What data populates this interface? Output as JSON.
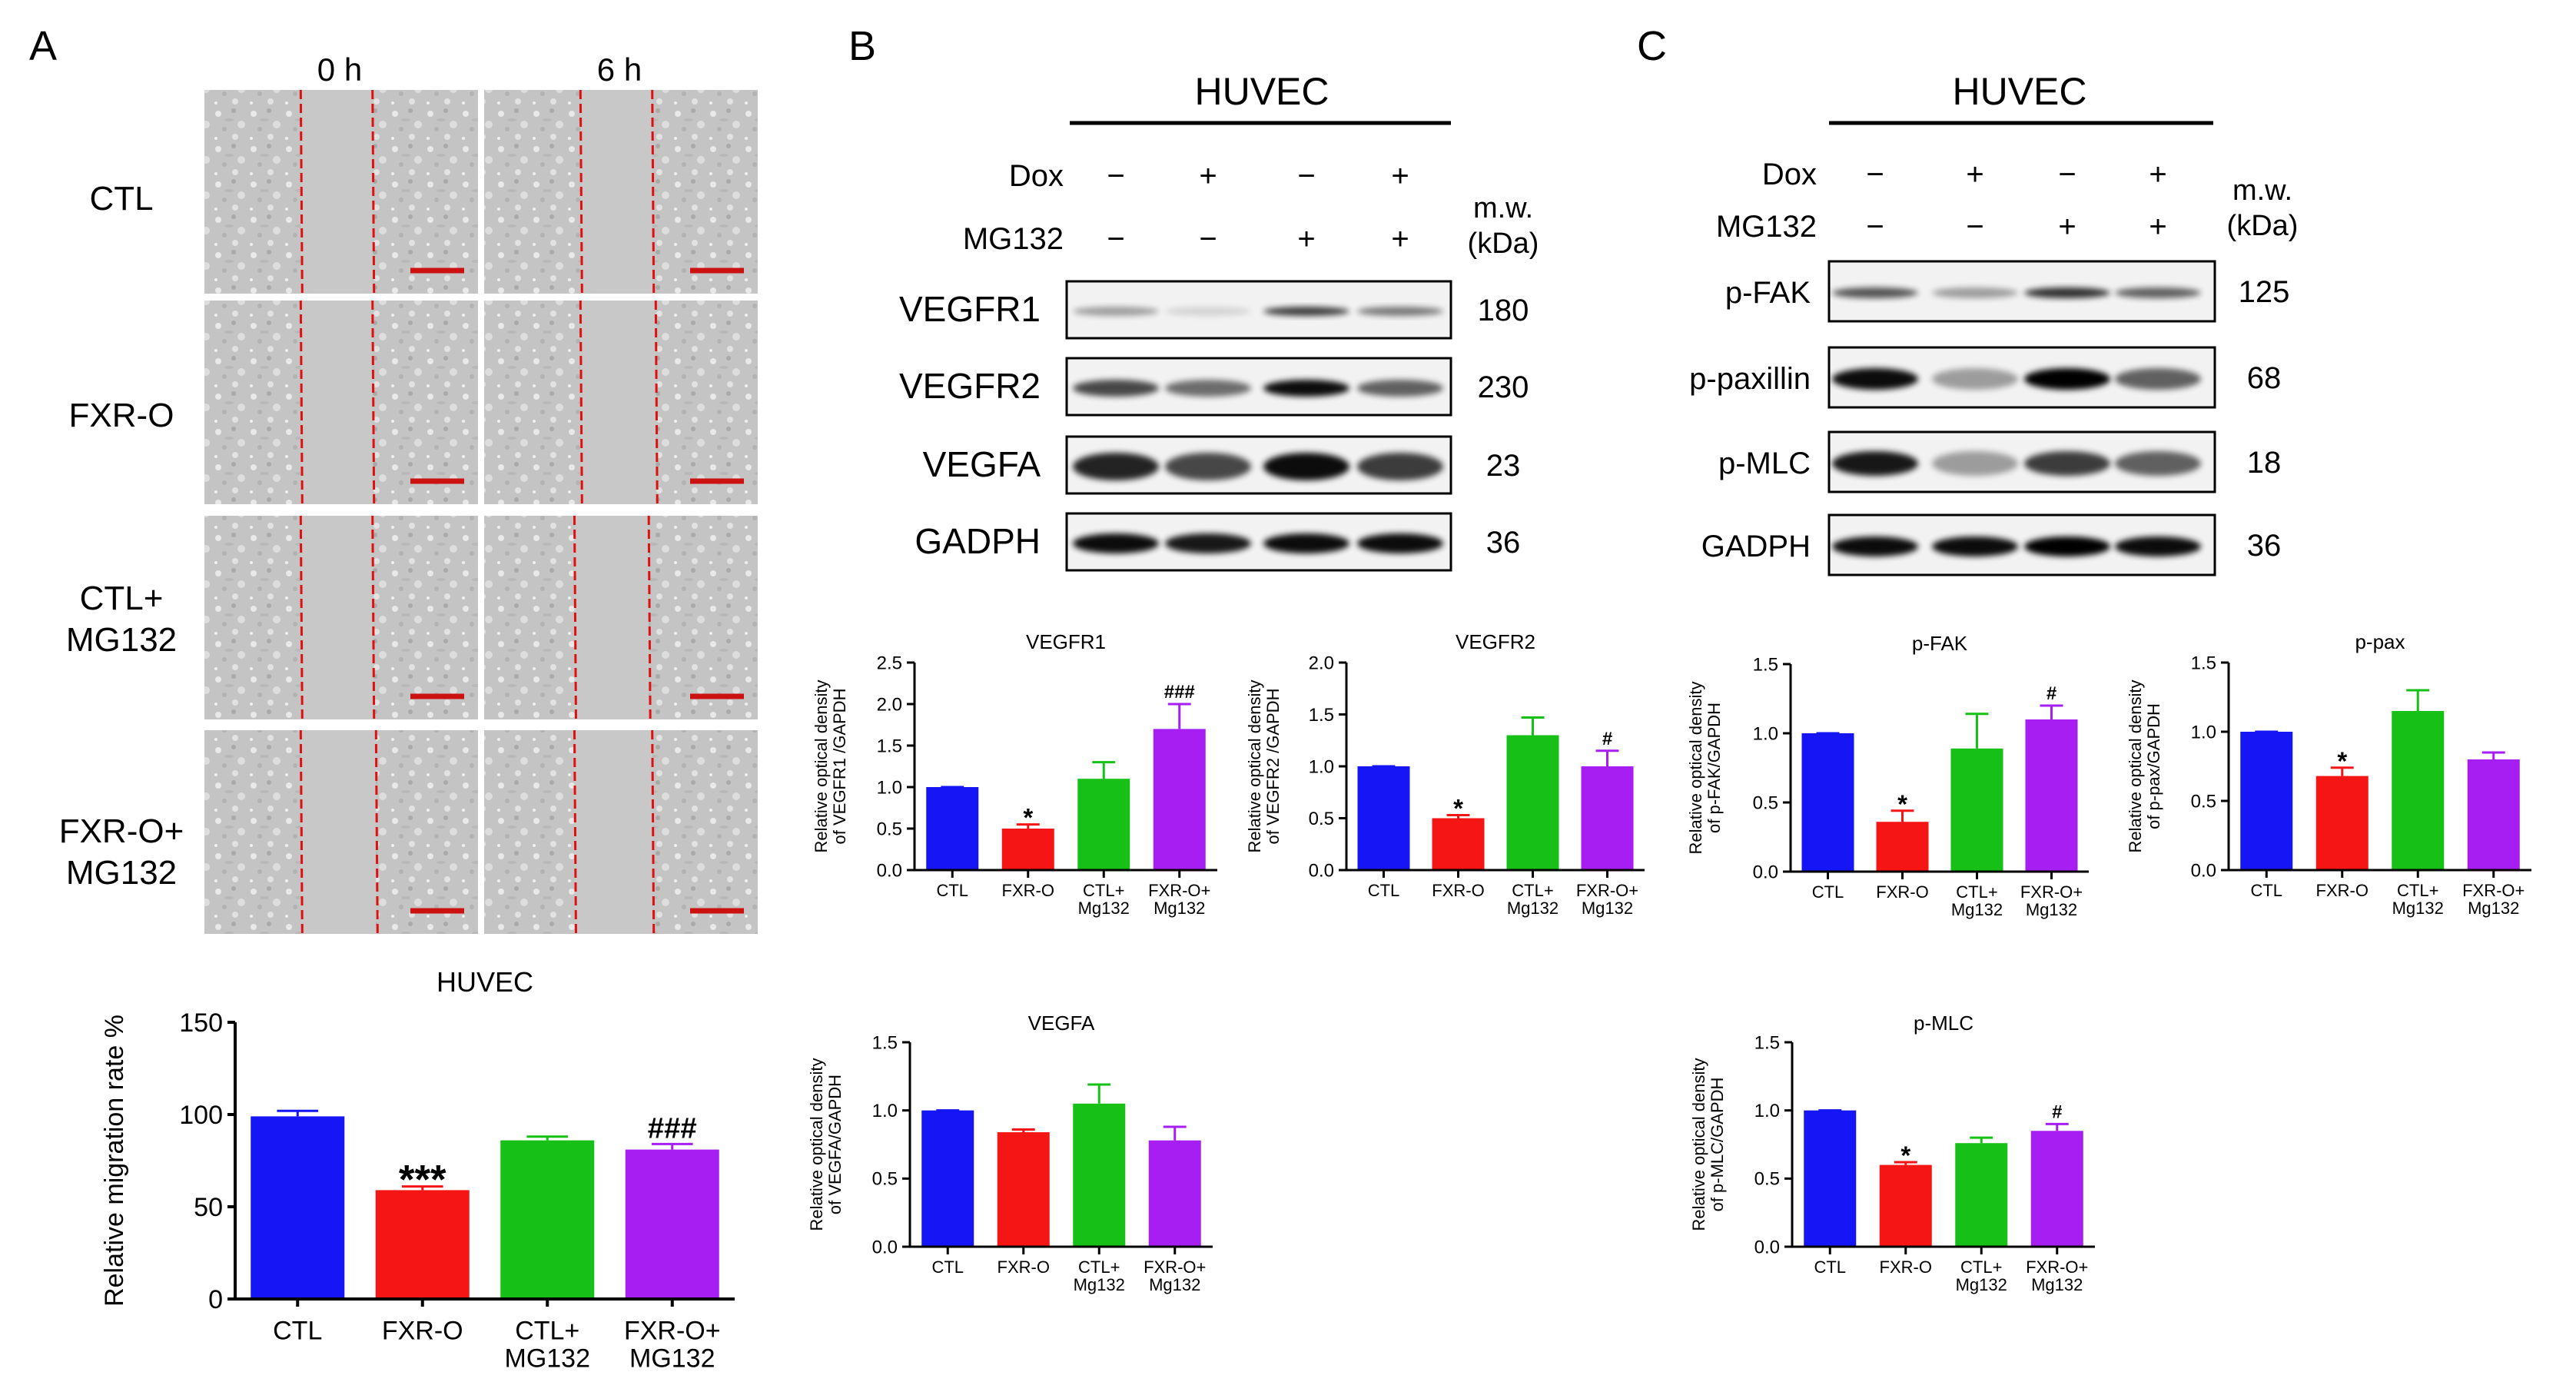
{
  "panel_labels": {
    "a": "A",
    "b": "B",
    "c": "C"
  },
  "colors": {
    "ctl": "#1515f5",
    "fxr": "#f51515",
    "ctl_mg": "#16c016",
    "fxr_mg": "#a61ef2",
    "scale_bar": "#cc1111",
    "scratch_line": "#e01010"
  },
  "micrographs": {
    "col_headers": [
      "0 h",
      "6 h"
    ],
    "row_labels": [
      [
        "CTL"
      ],
      [
        "FXR-O"
      ],
      [
        "CTL+",
        "MG132"
      ],
      [
        "FXR-O+",
        "MG132"
      ]
    ]
  },
  "blot_b": {
    "title": "HUVEC",
    "treat_rows": [
      {
        "label": "Dox",
        "values": [
          "−",
          "+",
          "−",
          "+"
        ]
      },
      {
        "label": "MG132",
        "values": [
          "−",
          "−",
          "+",
          "+"
        ]
      }
    ],
    "mw_header": [
      "m.w.",
      "(kDa)"
    ],
    "bands": [
      {
        "name": "VEGFR1",
        "mw": "180"
      },
      {
        "name": "VEGFR2",
        "mw": "230"
      },
      {
        "name": "VEGFA",
        "mw": "23"
      },
      {
        "name": "GADPH",
        "mw": "36"
      }
    ]
  },
  "blot_c": {
    "title": "HUVEC",
    "treat_rows": [
      {
        "label": "Dox",
        "values": [
          "−",
          "+",
          "−",
          "+"
        ]
      },
      {
        "label": "MG132",
        "values": [
          "−",
          "−",
          "+",
          "+"
        ]
      }
    ],
    "mw_header": [
      "m.w.",
      "(kDa)"
    ],
    "bands": [
      {
        "name": "p-FAK",
        "mw": "125"
      },
      {
        "name": "p-paxillin",
        "mw": "68"
      },
      {
        "name": "p-MLC",
        "mw": "18"
      },
      {
        "name": "GADPH",
        "mw": "36"
      }
    ]
  },
  "chart_data": [
    {
      "id": "migration",
      "type": "bar",
      "title": "HUVEC",
      "categories": [
        [
          "CTL"
        ],
        [
          "FXR-O"
        ],
        [
          "CTL+",
          "MG132"
        ],
        [
          "FXR-O+",
          "MG132"
        ]
      ],
      "values": [
        99,
        59,
        86,
        81
      ],
      "errors": [
        3,
        2,
        2,
        3
      ],
      "annotations": [
        "",
        "***",
        "",
        "###"
      ],
      "ylabel": [
        "Relative migration rate %"
      ],
      "ylim": [
        0,
        150
      ],
      "yticks": [
        0,
        50,
        100,
        150
      ],
      "xlabel": ""
    },
    {
      "id": "vegfr1",
      "type": "bar",
      "title": "VEGFR1",
      "categories": [
        [
          "CTL"
        ],
        [
          "FXR-O"
        ],
        [
          "CTL+",
          "Mg132"
        ],
        [
          "FXR-O+",
          "Mg132"
        ]
      ],
      "values": [
        1.0,
        0.5,
        1.1,
        1.7
      ],
      "errors": [
        0,
        0.05,
        0.2,
        0.3
      ],
      "annotations": [
        "",
        "*",
        "",
        "###"
      ],
      "ylabel": [
        "Relative optical density",
        "of VEGFR1 /GAPDH"
      ],
      "ylim": [
        0,
        2.5
      ],
      "yticks": [
        0.0,
        0.5,
        1.0,
        1.5,
        2.0,
        2.5
      ],
      "xlabel": ""
    },
    {
      "id": "vegfr2",
      "type": "bar",
      "title": "VEGFR2",
      "categories": [
        [
          "CTL"
        ],
        [
          "FXR-O"
        ],
        [
          "CTL+",
          "Mg132"
        ],
        [
          "FXR-O+",
          "Mg132"
        ]
      ],
      "values": [
        1.0,
        0.5,
        1.3,
        1.0
      ],
      "errors": [
        0,
        0.03,
        0.17,
        0.15
      ],
      "annotations": [
        "",
        "*",
        "",
        "#"
      ],
      "ylabel": [
        "Relative optical density",
        "of VEGFR2 /GAPDH"
      ],
      "ylim": [
        0,
        2.0
      ],
      "yticks": [
        0.0,
        0.5,
        1.0,
        1.5,
        2.0
      ],
      "xlabel": ""
    },
    {
      "id": "vegfa",
      "type": "bar",
      "title": "VEGFA",
      "categories": [
        [
          "CTL"
        ],
        [
          "FXR-O"
        ],
        [
          "CTL+",
          "Mg132"
        ],
        [
          "FXR-O+",
          "Mg132"
        ]
      ],
      "values": [
        1.0,
        0.84,
        1.05,
        0.78
      ],
      "errors": [
        0,
        0.02,
        0.14,
        0.1
      ],
      "annotations": [
        "",
        "",
        "",
        ""
      ],
      "ylabel": [
        "Relative optical density",
        "of VEGFA/GAPDH"
      ],
      "ylim": [
        0,
        1.5
      ],
      "yticks": [
        0.0,
        0.5,
        1.0,
        1.5
      ],
      "xlabel": ""
    },
    {
      "id": "pfak",
      "type": "bar",
      "title": "p-FAK",
      "categories": [
        [
          "CTL"
        ],
        [
          "FXR-O"
        ],
        [
          "CTL+",
          "Mg132"
        ],
        [
          "FXR-O+",
          "Mg132"
        ]
      ],
      "values": [
        1.0,
        0.36,
        0.89,
        1.1
      ],
      "errors": [
        0,
        0.08,
        0.25,
        0.1
      ],
      "annotations": [
        "",
        "*",
        "",
        "#"
      ],
      "ylabel": [
        "Relative optical density",
        "of p-FAK/GAPDH"
      ],
      "ylim": [
        0,
        1.5
      ],
      "yticks": [
        0.0,
        0.5,
        1.0,
        1.5
      ],
      "xlabel": ""
    },
    {
      "id": "ppax",
      "type": "bar",
      "title": "p-pax",
      "categories": [
        [
          "CTL"
        ],
        [
          "FXR-O"
        ],
        [
          "CTL+",
          "Mg132"
        ],
        [
          "FXR-O+",
          "Mg132"
        ]
      ],
      "values": [
        1.0,
        0.68,
        1.15,
        0.8
      ],
      "errors": [
        0,
        0.06,
        0.15,
        0.05
      ],
      "annotations": [
        "",
        "*",
        "",
        ""
      ],
      "ylabel": [
        "Relative optical density",
        "of p-pax/GAPDH"
      ],
      "ylim": [
        0,
        1.5
      ],
      "yticks": [
        0.0,
        0.5,
        1.0,
        1.5
      ],
      "xlabel": ""
    },
    {
      "id": "pmlc",
      "type": "bar",
      "title": "p-MLC",
      "categories": [
        [
          "CTL"
        ],
        [
          "FXR-O"
        ],
        [
          "CTL+",
          "Mg132"
        ],
        [
          "FXR-O+",
          "Mg132"
        ]
      ],
      "values": [
        1.0,
        0.6,
        0.76,
        0.85
      ],
      "errors": [
        0,
        0.02,
        0.04,
        0.05
      ],
      "annotations": [
        "",
        "*",
        "",
        "#"
      ],
      "ylabel": [
        "Relative optical density",
        "of p-MLC/GAPDH"
      ],
      "ylim": [
        0,
        1.5
      ],
      "yticks": [
        0.0,
        0.5,
        1.0,
        1.5
      ],
      "xlabel": ""
    }
  ]
}
